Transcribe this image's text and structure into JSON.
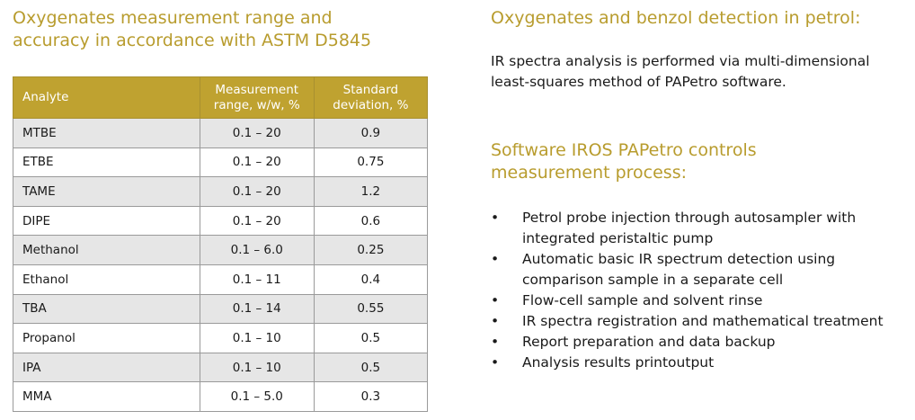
{
  "left": {
    "title_line1": "Oxygenates measurement range and",
    "title_line2": "accuracy in accordance with ASTM D5845",
    "table": {
      "headers": [
        "Analyte",
        "Measurement range, w/w, %",
        "Standard deviation, %"
      ],
      "rows": [
        [
          "MTBE",
          "0.1 – 20",
          "0.9"
        ],
        [
          "ETBE",
          "0.1 – 20",
          "0.75"
        ],
        [
          "TAME",
          "0.1 – 20",
          "1.2"
        ],
        [
          "DIPE",
          "0.1 – 20",
          "0.6"
        ],
        [
          "Methanol",
          "0.1 – 6.0",
          "0.25"
        ],
        [
          "Ethanol",
          "0.1 – 11",
          "0.4"
        ],
        [
          "TBA",
          "0.1 – 14",
          "0.55"
        ],
        [
          "Propanol",
          "0.1 – 10",
          "0.5"
        ],
        [
          "IPA",
          "0.1 – 10",
          "0.5"
        ],
        [
          "MMA",
          "0.1 – 5.0",
          "0.3"
        ]
      ]
    }
  },
  "right": {
    "title1": "Oxygenates and benzol detection in petrol:",
    "para_line1": "IR spectra analysis is performed via multi-dimensional",
    "para_line2": "least-squares method of PAPetro software.",
    "title2_line1": "Software IROS PAPetro controls",
    "title2_line2": "measurement process:",
    "bullet": "•",
    "bullets": [
      "Petrol probe injection through autosampler with integrated peristaltic pump",
      "Automatic basic IR spectrum detection using comparison sample in a separate cell",
      "Flow-cell sample and solvent rinse",
      "IR spectra registration and mathematical treatment",
      "Report preparation and data backup",
      "Analysis results printoutput"
    ]
  }
}
